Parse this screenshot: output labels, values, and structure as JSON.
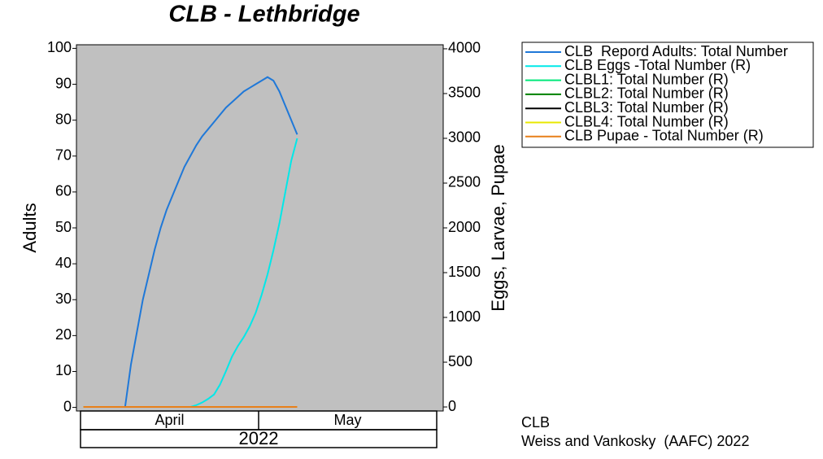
{
  "chart_data": {
    "type": "line",
    "title": "CLB - Lethbridge",
    "y_label": "Adults",
    "y2_label": "Eggs, Larvae, Pupae",
    "months": [
      "April",
      "May"
    ],
    "year": "2022",
    "ylim": [
      -1,
      101
    ],
    "yticks": [
      0,
      10,
      20,
      30,
      40,
      50,
      60,
      70,
      80,
      90,
      100
    ],
    "y2lim": [
      -45,
      4045
    ],
    "y2ticks": [
      0,
      500,
      1000,
      1500,
      2000,
      2500,
      3000,
      3500,
      4000
    ],
    "series": [
      {
        "name": "CLB  Repord Adults: Total Number",
        "color": "#1f78d8",
        "values": [
          null,
          null,
          null,
          null,
          null,
          null,
          null,
          0,
          12,
          21,
          30,
          37,
          44,
          50,
          55,
          59,
          63,
          67,
          70,
          73,
          75.5,
          77.5,
          79.5,
          81.5,
          83.5,
          85,
          86.5,
          88,
          89,
          90,
          91,
          92,
          91,
          88,
          84,
          80,
          76,
          null,
          null,
          null,
          null,
          null,
          null,
          null,
          null,
          null,
          null,
          null,
          null,
          null,
          null,
          null,
          null,
          null,
          null,
          null,
          null,
          null,
          null,
          null
        ]
      },
      {
        "name": "CLB Eggs -Total Number (R)",
        "color": "#00e8e8",
        "axis": "y2",
        "values": [
          0,
          0,
          0,
          0,
          0,
          0,
          0,
          0,
          0,
          0,
          0,
          0,
          0,
          0,
          0,
          0,
          0,
          0,
          0,
          20,
          50,
          90,
          140,
          250,
          400,
          560,
          680,
          780,
          900,
          1050,
          1250,
          1480,
          1750,
          2050,
          2400,
          2750,
          3000,
          null,
          null,
          null,
          null,
          null,
          null,
          null,
          null,
          null,
          null,
          null,
          null,
          null,
          null,
          null,
          null,
          null,
          null,
          null,
          null,
          null,
          null,
          null
        ]
      },
      {
        "name": "CLBL1: Total Number (R)",
        "color": "#00e87a",
        "axis": "y2",
        "values": [
          0,
          0,
          0,
          0,
          0,
          0,
          0,
          0,
          0,
          0,
          0,
          0,
          0,
          0,
          0,
          0,
          0,
          0,
          0,
          0,
          0,
          0,
          0,
          0,
          0,
          0,
          0,
          0,
          0,
          0,
          0,
          0,
          0,
          0,
          0,
          0,
          0,
          null,
          null,
          null,
          null,
          null,
          null,
          null,
          null,
          null,
          null,
          null,
          null,
          null,
          null,
          null,
          null,
          null,
          null,
          null,
          null,
          null,
          null,
          null
        ]
      },
      {
        "name": "CLBL2: Total Number (R)",
        "color": "#008000",
        "axis": "y2",
        "values": [
          0,
          0,
          0,
          0,
          0,
          0,
          0,
          0,
          0,
          0,
          0,
          0,
          0,
          0,
          0,
          0,
          0,
          0,
          0,
          0,
          0,
          0,
          0,
          0,
          0,
          0,
          0,
          0,
          0,
          0,
          0,
          0,
          0,
          0,
          0,
          0,
          0,
          null,
          null,
          null,
          null,
          null,
          null,
          null,
          null,
          null,
          null,
          null,
          null,
          null,
          null,
          null,
          null,
          null,
          null,
          null,
          null,
          null,
          null,
          null
        ]
      },
      {
        "name": "CLBL3: Total Number (R)",
        "color": "#000000",
        "axis": "y2",
        "values": [
          0,
          0,
          0,
          0,
          0,
          0,
          0,
          0,
          0,
          0,
          0,
          0,
          0,
          0,
          0,
          0,
          0,
          0,
          0,
          0,
          0,
          0,
          0,
          0,
          0,
          0,
          0,
          0,
          0,
          0,
          0,
          0,
          0,
          0,
          0,
          0,
          0,
          null,
          null,
          null,
          null,
          null,
          null,
          null,
          null,
          null,
          null,
          null,
          null,
          null,
          null,
          null,
          null,
          null,
          null,
          null,
          null,
          null,
          null,
          null
        ]
      },
      {
        "name": "CLBL4: Total Number (R)",
        "color": "#e8e800",
        "axis": "y2",
        "values": [
          0,
          0,
          0,
          0,
          0,
          0,
          0,
          0,
          0,
          0,
          0,
          0,
          0,
          0,
          0,
          0,
          0,
          0,
          0,
          0,
          0,
          0,
          0,
          0,
          0,
          0,
          0,
          0,
          0,
          0,
          0,
          0,
          0,
          0,
          0,
          0,
          0,
          null,
          null,
          null,
          null,
          null,
          null,
          null,
          null,
          null,
          null,
          null,
          null,
          null,
          null,
          null,
          null,
          null,
          null,
          null,
          null,
          null,
          null,
          null
        ]
      },
      {
        "name": "CLB Pupae - Total Number (R)",
        "color": "#e8801a",
        "axis": "y2",
        "values": [
          0,
          0,
          0,
          0,
          0,
          0,
          0,
          0,
          0,
          0,
          0,
          0,
          0,
          0,
          0,
          0,
          0,
          0,
          0,
          0,
          0,
          0,
          0,
          0,
          0,
          0,
          0,
          0,
          0,
          0,
          0,
          0,
          0,
          0,
          0,
          0,
          0,
          null,
          null,
          null,
          null,
          null,
          null,
          null,
          null,
          null,
          null,
          null,
          null,
          null,
          null,
          null,
          null,
          null,
          null,
          null,
          null,
          null,
          null,
          null
        ]
      }
    ],
    "notes": [
      "CLB",
      "Weiss and Vankosky  (AAFC) 2022"
    ]
  }
}
